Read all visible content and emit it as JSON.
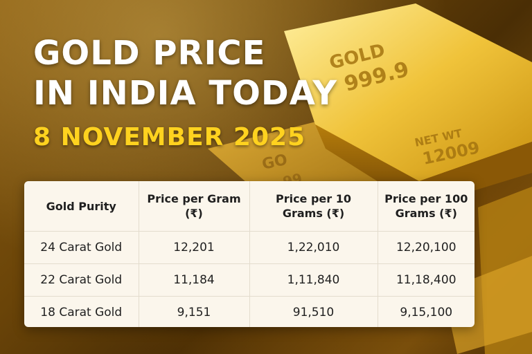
{
  "headline": {
    "line1": "GOLD PRICE",
    "line2": "IN INDIA TODAY",
    "date": "8 NOVEMBER 2025"
  },
  "bar_engravings": {
    "front_top": "GOLD",
    "front_purity": "999.9",
    "front_label": "NET WT",
    "front_weight": "12009",
    "back_text": "GO",
    "back_number": "99"
  },
  "table": {
    "headers": [
      "Gold Purity",
      "Price per Gram (₹)",
      "Price per 10 Grams (₹)",
      "Price per 100 Grams (₹)"
    ],
    "rows": [
      [
        "24 Carat Gold",
        "12,201",
        "1,22,010",
        "12,20,100"
      ],
      [
        "22 Carat Gold",
        "11,184",
        "1,11,840",
        "11,18,400"
      ],
      [
        "18 Carat Gold",
        "9,151",
        "91,510",
        "9,15,100"
      ]
    ]
  },
  "colors": {
    "headline": "#ffffff",
    "date": "#ffd21f",
    "card": "#fbf6ec",
    "gold": "#e0a91c"
  }
}
